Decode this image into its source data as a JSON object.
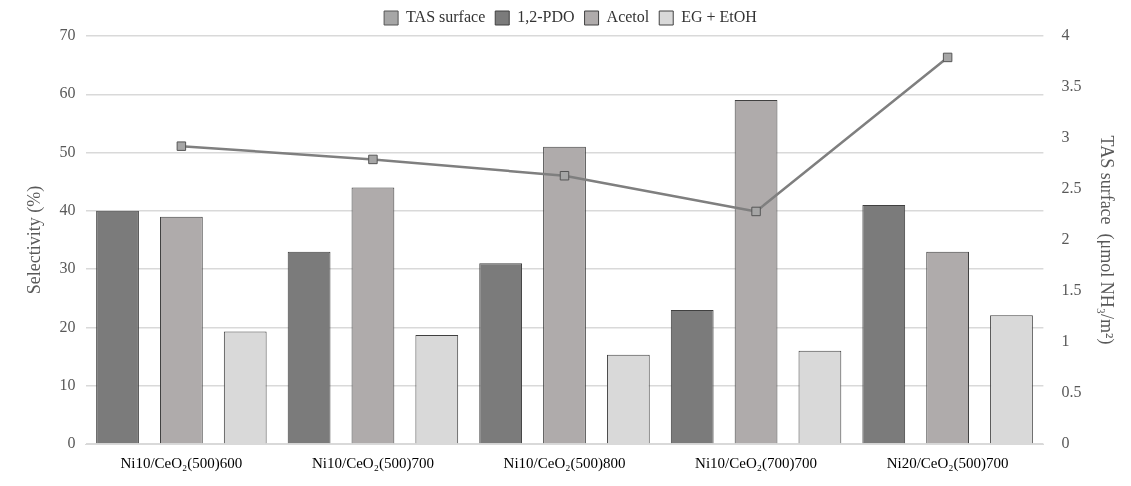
{
  "chart_data": {
    "type": "bar",
    "categories": [
      "Ni10/CeO₂(500)600",
      "Ni10/CeO₂(500)700",
      "Ni10/CeO₂(500)800",
      "Ni10/CeO₂(700)700",
      "Ni20/CeO₂(500)700"
    ],
    "ylabel": "Selectivity (%)",
    "y2label": "TAS surface  (μmol NH₃/m²)",
    "ylim": [
      0,
      70
    ],
    "yticks": [
      0,
      10,
      20,
      30,
      40,
      50,
      60,
      70
    ],
    "y2lim": [
      0,
      4
    ],
    "y2ticks": [
      0,
      0.5,
      1,
      1.5,
      2,
      2.5,
      3,
      3.5,
      4
    ],
    "grid": "y",
    "legend": "top",
    "series": [
      {
        "name": "1,2-PDO",
        "color": "#7b7b7b",
        "values": [
          40,
          33,
          31,
          23,
          41
        ]
      },
      {
        "name": "Acetol",
        "color": "#afabab",
        "values": [
          39,
          44,
          51,
          59,
          33
        ]
      },
      {
        "name": "EG + EtOH",
        "color": "#d9d9d9",
        "values": [
          19.3,
          18.7,
          15.3,
          16,
          22.1
        ]
      },
      {
        "name": "TAS surface",
        "type": "line",
        "axis": "y2",
        "marker": "square",
        "color": "#7f7f7f",
        "values": [
          2.92,
          2.79,
          2.63,
          2.28,
          3.79
        ]
      }
    ]
  }
}
